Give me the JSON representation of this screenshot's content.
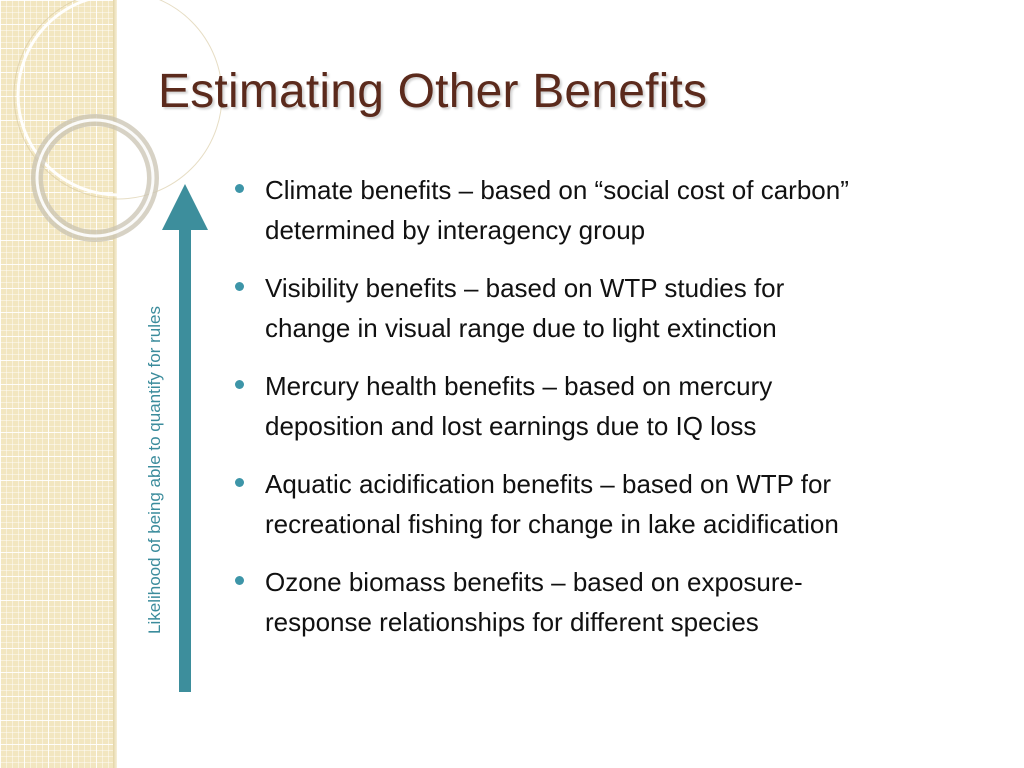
{
  "slide": {
    "title": "Estimating Other Benefits",
    "axis_label": "Likelihood of being able to quantify for rules",
    "arrow_color": "#3d8e9c",
    "title_color": "#5b2a1c",
    "bullet_color": "#3d95a8",
    "bullets": [
      {
        "line1": "Climate benefits – based on “social cost of carbon”",
        "line2": "determined by interagency group"
      },
      {
        "line1": "Visibility benefits – based on WTP studies for",
        "line2": "change in visual range due to light extinction"
      },
      {
        "line1": "Mercury health benefits – based on mercury",
        "line2": "deposition and lost earnings due to IQ loss"
      },
      {
        "line1": "Aquatic acidification benefits – based on WTP for",
        "line2": "recreational fishing for change in lake acidification"
      },
      {
        "line1": "Ozone biomass benefits – based on exposure-",
        "line2": "response relationships for different species"
      }
    ]
  }
}
